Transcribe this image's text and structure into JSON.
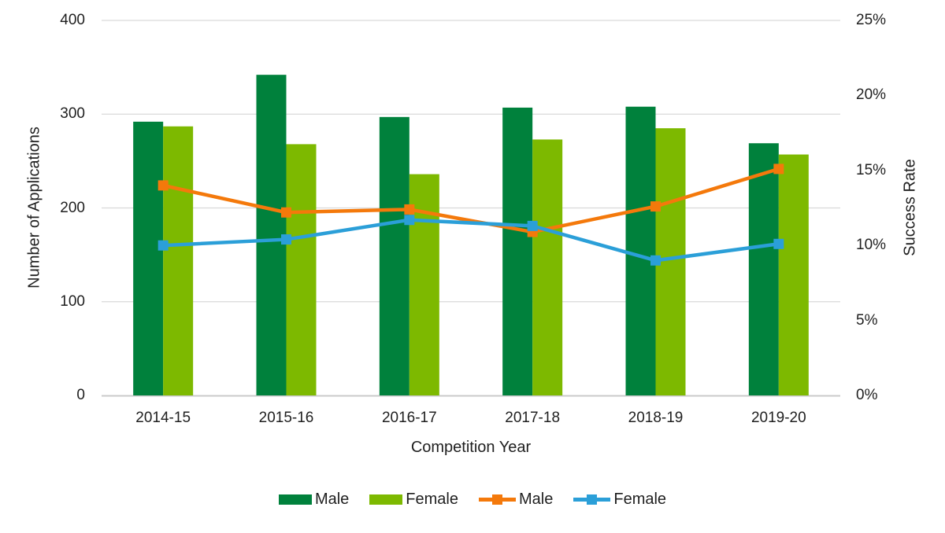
{
  "chart_data": {
    "type": "combo-bar-line",
    "categories": [
      "2014-15",
      "2015-16",
      "2016-17",
      "2017-18",
      "2018-19",
      "2019-20"
    ],
    "series": [
      {
        "name": "Male",
        "type": "bar",
        "axis": "left",
        "color": "#00813C",
        "values": [
          292,
          342,
          297,
          307,
          308,
          269
        ]
      },
      {
        "name": "Female",
        "type": "bar",
        "axis": "left",
        "color": "#7DB900",
        "values": [
          287,
          268,
          236,
          273,
          285,
          257
        ]
      },
      {
        "name": "Male",
        "type": "line",
        "axis": "right",
        "color": "#F4790B",
        "values": [
          14.0,
          12.2,
          12.4,
          10.9,
          12.6,
          15.1
        ]
      },
      {
        "name": "Female",
        "type": "line",
        "axis": "right",
        "color": "#2B9FD8",
        "values": [
          10.0,
          10.4,
          11.7,
          11.3,
          9.0,
          10.1
        ]
      }
    ],
    "left_axis": {
      "title": "Number of Applications",
      "ticks": [
        "0",
        "100",
        "200",
        "300",
        "400"
      ],
      "min": 0,
      "max": 400
    },
    "right_axis": {
      "title": "Success Rate",
      "ticks": [
        "0%",
        "5%",
        "10%",
        "15%",
        "20%",
        "25%"
      ],
      "min": 0,
      "max": 25
    },
    "x_axis": {
      "title": "Competition Year"
    },
    "grid": true,
    "grid_color": "#D9D9D9",
    "axis_line_color": "#C8C8C8",
    "legend_position": "bottom"
  }
}
